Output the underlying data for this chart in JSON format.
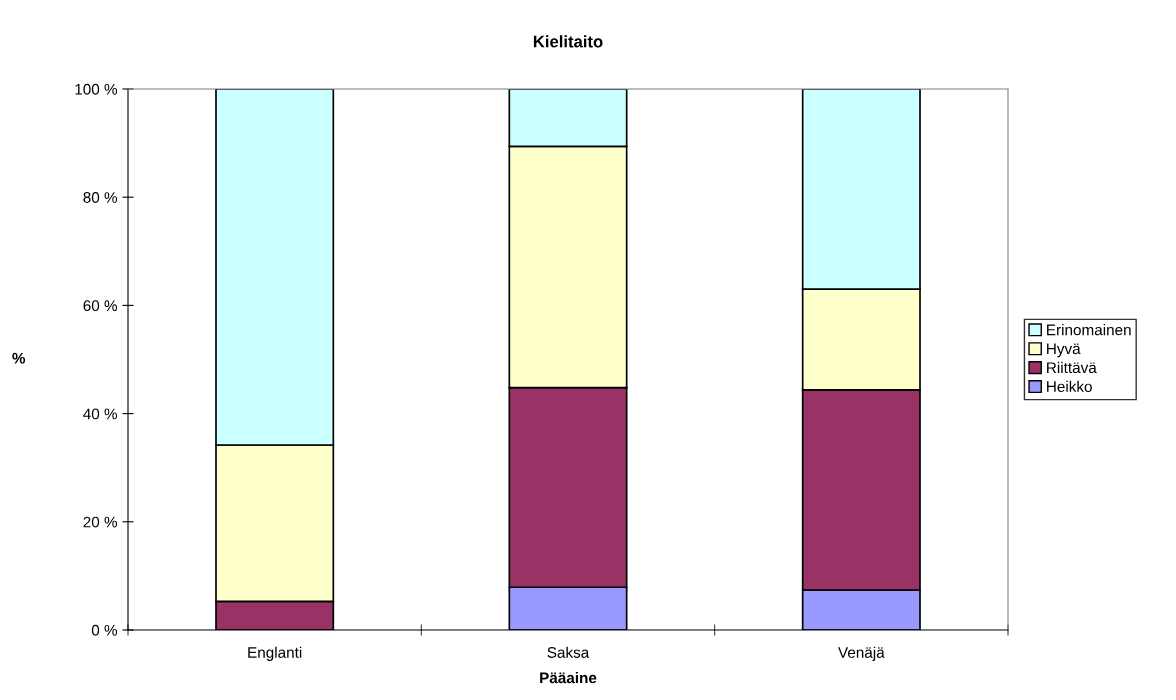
{
  "chart_data": {
    "type": "bar",
    "title": "Kielitaito",
    "xlabel": "Pääaine",
    "ylabel": "%",
    "categories": [
      "Englanti",
      "Saksa",
      "Venäjä"
    ],
    "stacked": true,
    "legend": "right",
    "grid": false,
    "ylim": [
      0,
      100
    ],
    "yticks": [
      {
        "value": 0,
        "label": "0 %"
      },
      {
        "value": 20,
        "label": "20 %"
      },
      {
        "value": 40,
        "label": "40 %"
      },
      {
        "value": 60,
        "label": "60 %"
      },
      {
        "value": 80,
        "label": "80 %"
      },
      {
        "value": 100,
        "label": "100 %"
      }
    ],
    "series": [
      {
        "name": "Heikko",
        "color": "#9999ff",
        "values": [
          0,
          7.9,
          7.4
        ]
      },
      {
        "name": "Riittävä",
        "color": "#993366",
        "values": [
          5.3,
          36.9,
          37.0
        ]
      },
      {
        "name": "Hyvä",
        "color": "#ffffcc",
        "values": [
          28.9,
          44.6,
          18.6
        ]
      },
      {
        "name": "Erinomainen",
        "color": "#ccffff",
        "values": [
          65.8,
          10.6,
          37.0
        ]
      }
    ]
  }
}
